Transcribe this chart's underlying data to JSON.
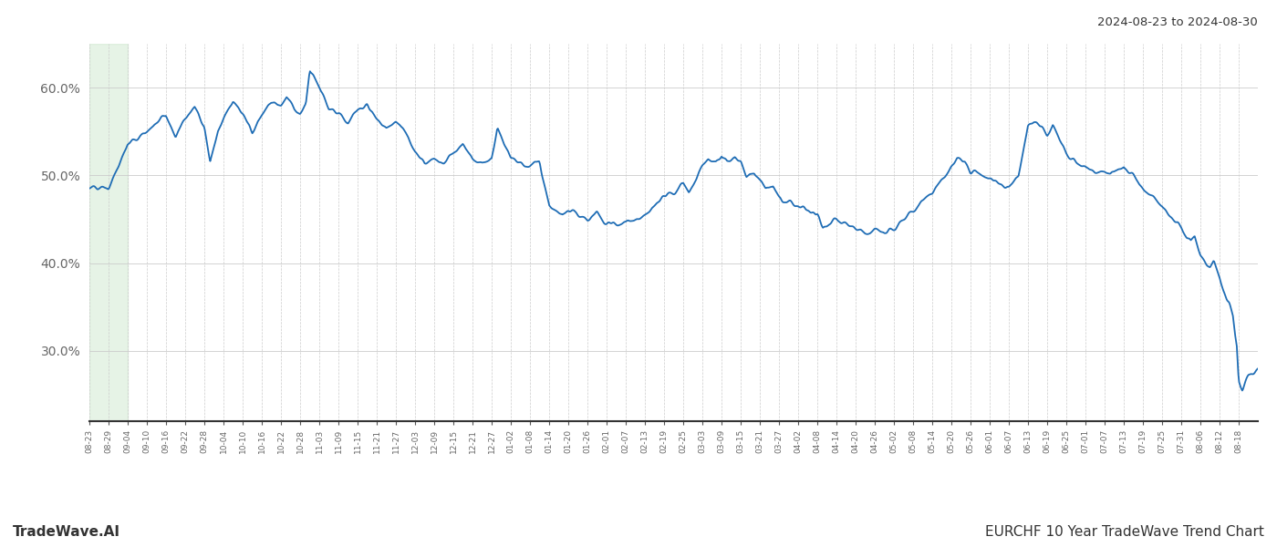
{
  "title_top_right": "2024-08-23 to 2024-08-30",
  "title_bottom_left": "TradeWave.AI",
  "title_bottom_right": "EURCHF 10 Year TradeWave Trend Chart",
  "line_color": "#1f6db5",
  "highlight_color": "#c8e6c9",
  "background_color": "#ffffff",
  "grid_color": "#cccccc",
  "ylim": [
    22,
    65
  ],
  "yticks": [
    30,
    40,
    50,
    60
  ],
  "ytick_labels": [
    "30.0%",
    "40.0%",
    "50.0%",
    "60.0%"
  ],
  "x_labels": [
    "08-23",
    "08-29",
    "09-04",
    "09-10",
    "09-16",
    "09-22",
    "09-28",
    "10-04",
    "10-10",
    "10-16",
    "10-22",
    "10-28",
    "11-03",
    "11-09",
    "11-15",
    "11-21",
    "11-27",
    "12-03",
    "12-09",
    "12-15",
    "12-21",
    "12-27",
    "01-02",
    "01-08",
    "01-14",
    "01-20",
    "01-26",
    "02-01",
    "02-07",
    "02-13",
    "02-19",
    "02-25",
    "03-03",
    "03-09",
    "03-15",
    "03-21",
    "03-27",
    "04-02",
    "04-08",
    "04-14",
    "04-20",
    "04-26",
    "05-02",
    "05-08",
    "05-14",
    "05-20",
    "05-26",
    "06-01",
    "06-07",
    "06-13",
    "06-19",
    "06-25",
    "07-01",
    "07-07",
    "07-13",
    "07-19",
    "07-25",
    "07-31",
    "08-06",
    "08-12",
    "08-18"
  ]
}
